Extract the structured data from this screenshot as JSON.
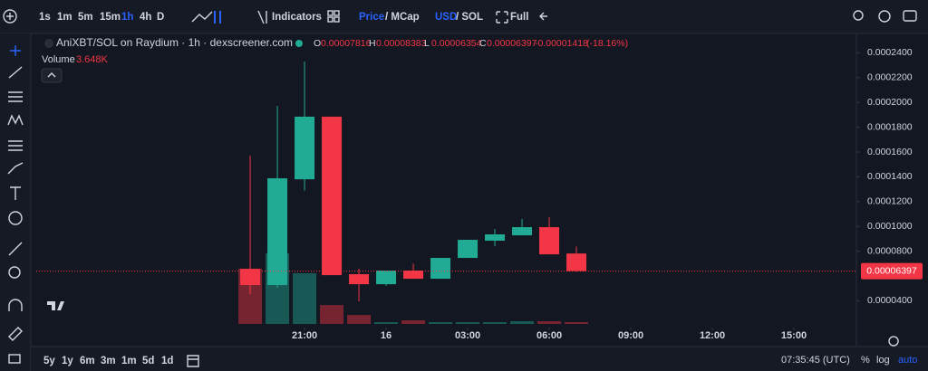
{
  "toolbar": {
    "intervals": [
      "1s",
      "1m",
      "5m",
      "15m",
      "1h",
      "4h",
      "D"
    ],
    "indicators": "Indicators",
    "price": "Price",
    "mcap": "/ MCap",
    "usd": "USD",
    "sol": "/ SOL",
    "full": "Full"
  },
  "legend": {
    "title": "AniXBT/SOL on Raydium · 1h · dexscreener.com",
    "labels": [
      "O",
      "H",
      "L",
      "C"
    ],
    "change_pct": "(-18.16%)",
    "volume_label": "Volume",
    "volume_value_label": "3.648K"
  },
  "chart_data": {
    "type": "candlestick",
    "x": [
      19,
      20,
      21,
      22,
      23,
      24,
      25,
      26,
      27,
      28,
      29,
      30,
      31
    ],
    "open": [
      6.58e-05,
      5.27e-05,
      0.000138,
      0.0001885,
      6.15e-05,
      5.34e-05,
      6.44e-05,
      5.78e-05,
      7.46e-05,
      8.85e-05,
      9.28e-05,
      9.94e-05,
      7.816e-05
    ],
    "high": [
      0.000157,
      0.0001972,
      0.000233,
      0.0001885,
      6.58e-05,
      6.44e-05,
      7e-05,
      7.46e-05,
      8.92e-05,
      9.8e-05,
      0.000106,
      0.0001074,
      8.383e-05
    ],
    "low": [
      4.54e-05,
      5.05e-05,
      0.000129,
      6.07e-05,
      3.96e-05,
      5.21e-05,
      5.78e-05,
      5.78e-05,
      7.46e-05,
      8.4e-05,
      9.28e-05,
      7.75e-05,
      6.354e-05
    ],
    "close": [
      5.27e-05,
      0.0001388,
      0.0001885,
      6.07e-05,
      5.34e-05,
      6.44e-05,
      5.78e-05,
      7.46e-05,
      8.92e-05,
      9.36e-05,
      9.94e-05,
      7.75e-05,
      6.397e-05
    ],
    "change": -1.418e-05,
    "volumes": [
      111000,
      142000,
      102000,
      38000,
      18000,
      3600,
      7300,
      3600,
      3600,
      3600,
      5500,
      5500,
      3648
    ],
    "volume_lim": [
      0,
      300000
    ],
    "up_color": "#22ab94",
    "down_color": "#f23645",
    "xlim": [
      11.13,
      41.3
    ],
    "xticks": [
      {
        "value": 21,
        "label": "21:00"
      },
      {
        "value": 24,
        "label": "16"
      },
      {
        "value": 27,
        "label": "03:00"
      },
      {
        "value": 30,
        "label": "06:00"
      },
      {
        "value": 33,
        "label": "09:00"
      },
      {
        "value": 36,
        "label": "12:00"
      },
      {
        "value": 39,
        "label": "15:00"
      }
    ],
    "ylim": [
      5.3e-06,
      0.0002534
    ],
    "yticks": [
      {
        "value": 4e-05,
        "label": "0.0000400"
      },
      {
        "value": 8e-05,
        "label": "0.0000800"
      },
      {
        "value": 0.0001,
        "label": "0.0001000"
      },
      {
        "value": 0.00012,
        "label": "0.0001200"
      },
      {
        "value": 0.00014,
        "label": "0.0001400"
      },
      {
        "value": 0.00016,
        "label": "0.0001600"
      },
      {
        "value": 0.00018,
        "label": "0.0001800"
      },
      {
        "value": 0.0002,
        "label": "0.0002000"
      },
      {
        "value": 0.00022,
        "label": "0.0002200"
      },
      {
        "value": 0.00024,
        "label": "0.0002400"
      }
    ]
  },
  "bottom": {
    "ranges": [
      "5y",
      "1y",
      "6m",
      "3m",
      "1m",
      "5d",
      "1d"
    ],
    "time": "07:35:45 (UTC)",
    "percent": "%",
    "log": "log",
    "auto": "auto"
  }
}
